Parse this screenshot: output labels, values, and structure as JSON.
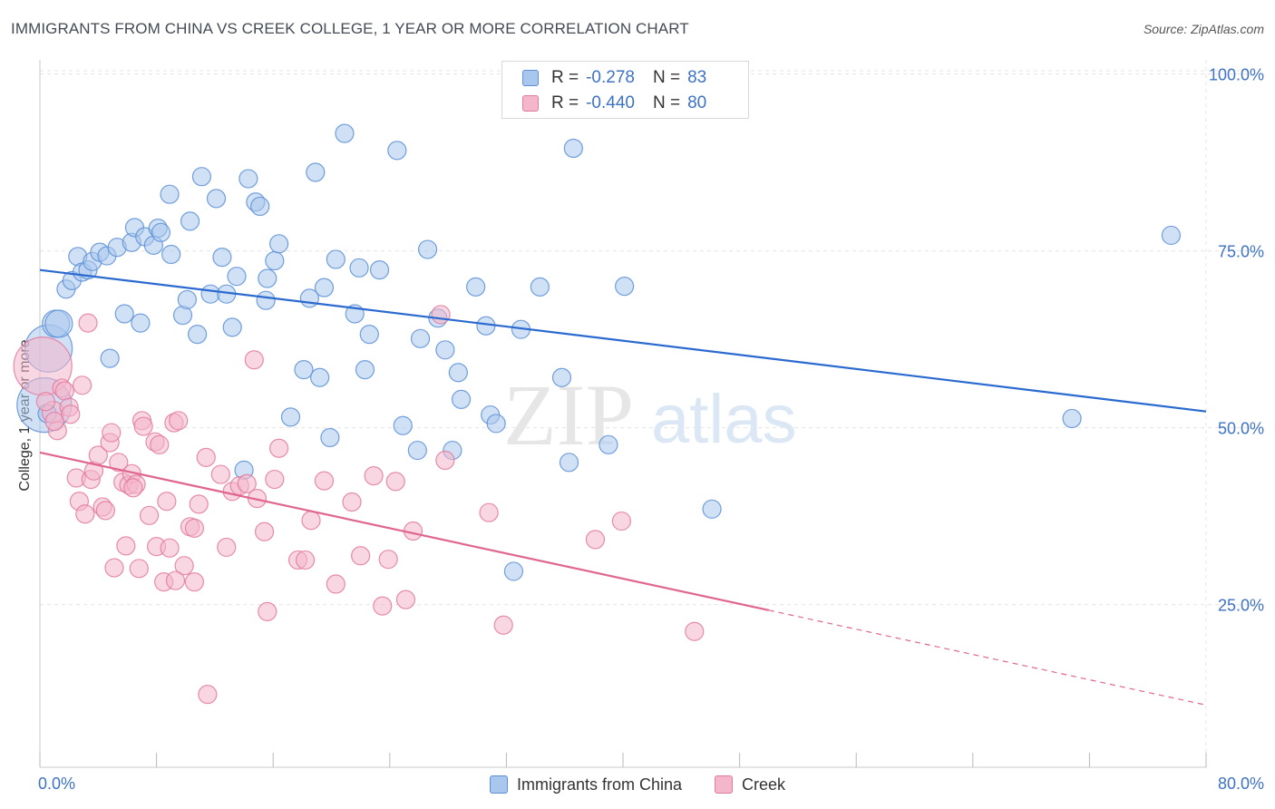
{
  "title": "IMMIGRANTS FROM CHINA VS CREEK COLLEGE, 1 YEAR OR MORE CORRELATION CHART",
  "source": "Source: ZipAtlas.com",
  "watermark": {
    "zip": "ZIP",
    "atlas": "atlas"
  },
  "colors": {
    "blue_fill": "#a9c6ec",
    "blue_stroke": "#5b8fd6",
    "blue_line": "#2a6ad0",
    "pink_fill": "#f4b6cb",
    "pink_stroke": "#e2799e",
    "pink_line": "#e0668f",
    "axis_text": "#3d72c4",
    "grid": "#e4e4e4"
  },
  "legend": {
    "r_label": "R =",
    "n_label": "N =",
    "series": [
      {
        "r": "-0.278",
        "n": "83"
      },
      {
        "r": "-0.440",
        "n": "80"
      }
    ]
  },
  "chart_data": {
    "type": "scatter",
    "title": "IMMIGRANTS FROM CHINA VS CREEK COLLEGE, 1 YEAR OR MORE CORRELATION CHART",
    "xlabel": "",
    "ylabel": "College, 1 year or more",
    "xlim": [
      0,
      80
    ],
    "ylim": [
      2,
      102
    ],
    "x_tick_labels": [
      "0.0%",
      "80.0%"
    ],
    "y_ticks": [
      25,
      50,
      75,
      100
    ],
    "y_tick_labels": [
      "25.0%",
      "50.0%",
      "75.0%",
      "100.0%"
    ],
    "legend_position": "top-center",
    "grid": true,
    "series": [
      {
        "name": "Immigrants from China",
        "trend": {
          "x": [
            0,
            80
          ],
          "y": [
            72.3,
            52.3
          ],
          "dashed_after": null
        },
        "points": [
          [
            0.3,
            53.2
          ],
          [
            0.6,
            61.2
          ],
          [
            1.1,
            64.7
          ],
          [
            1.3,
            64.7
          ],
          [
            1.8,
            69.6
          ],
          [
            2.2,
            70.8
          ],
          [
            2.6,
            74.2
          ],
          [
            2.9,
            72.0
          ],
          [
            3.3,
            72.3
          ],
          [
            3.6,
            73.5
          ],
          [
            4.1,
            74.8
          ],
          [
            4.6,
            74.3
          ],
          [
            4.8,
            59.8
          ],
          [
            5.3,
            75.5
          ],
          [
            5.8,
            66.1
          ],
          [
            6.3,
            76.2
          ],
          [
            6.5,
            78.3
          ],
          [
            6.9,
            64.8
          ],
          [
            7.2,
            77.0
          ],
          [
            7.8,
            75.8
          ],
          [
            8.1,
            78.2
          ],
          [
            8.3,
            77.6
          ],
          [
            8.9,
            83.0
          ],
          [
            9.0,
            74.5
          ],
          [
            9.8,
            65.9
          ],
          [
            10.1,
            68.1
          ],
          [
            10.3,
            79.2
          ],
          [
            10.8,
            63.2
          ],
          [
            11.1,
            85.5
          ],
          [
            11.7,
            68.9
          ],
          [
            12.1,
            82.4
          ],
          [
            12.5,
            74.1
          ],
          [
            12.8,
            68.9
          ],
          [
            13.2,
            64.2
          ],
          [
            13.5,
            71.4
          ],
          [
            14.0,
            44.0
          ],
          [
            14.3,
            85.2
          ],
          [
            14.8,
            81.9
          ],
          [
            15.1,
            81.3
          ],
          [
            15.5,
            68.0
          ],
          [
            15.6,
            71.1
          ],
          [
            16.1,
            73.6
          ],
          [
            16.4,
            76.0
          ],
          [
            17.2,
            51.5
          ],
          [
            18.1,
            58.2
          ],
          [
            18.5,
            68.3
          ],
          [
            18.9,
            86.1
          ],
          [
            19.2,
            57.1
          ],
          [
            19.5,
            69.8
          ],
          [
            19.9,
            48.6
          ],
          [
            20.3,
            73.8
          ],
          [
            20.9,
            91.6
          ],
          [
            21.6,
            66.1
          ],
          [
            21.9,
            72.6
          ],
          [
            22.3,
            58.2
          ],
          [
            22.6,
            63.2
          ],
          [
            23.3,
            72.3
          ],
          [
            24.5,
            89.2
          ],
          [
            24.9,
            50.3
          ],
          [
            25.9,
            46.8
          ],
          [
            26.1,
            62.6
          ],
          [
            26.6,
            75.2
          ],
          [
            27.3,
            65.5
          ],
          [
            27.8,
            61.0
          ],
          [
            28.3,
            46.8
          ],
          [
            28.7,
            57.8
          ],
          [
            28.9,
            54.0
          ],
          [
            29.9,
            69.9
          ],
          [
            30.6,
            64.4
          ],
          [
            30.9,
            51.8
          ],
          [
            31.3,
            50.6
          ],
          [
            32.5,
            29.7
          ],
          [
            33.0,
            63.9
          ],
          [
            34.3,
            69.9
          ],
          [
            35.8,
            57.1
          ],
          [
            36.3,
            45.1
          ],
          [
            36.6,
            89.5
          ],
          [
            39.0,
            47.6
          ],
          [
            40.1,
            70.0
          ],
          [
            46.1,
            38.5
          ],
          [
            70.8,
            51.3
          ],
          [
            77.6,
            77.2
          ],
          [
            0.5,
            52.0
          ]
        ],
        "sizes": [
          30,
          26,
          15,
          15,
          10,
          10,
          10,
          10,
          10,
          10,
          10,
          10,
          10,
          10,
          10,
          10,
          10,
          10,
          10,
          10,
          10,
          10,
          10,
          10,
          10,
          10,
          10,
          10,
          10,
          10,
          10,
          10,
          10,
          10,
          10,
          10,
          10,
          10,
          10,
          10,
          10,
          10,
          10,
          10,
          10,
          10,
          10,
          10,
          10,
          10,
          10,
          10,
          10,
          10,
          10,
          10,
          10,
          10,
          10,
          10,
          10,
          10,
          10,
          10,
          10,
          10,
          10,
          10,
          10,
          10,
          10,
          10,
          10,
          10,
          10,
          10,
          10,
          10,
          10,
          10,
          10,
          10,
          10
        ]
      },
      {
        "name": "Creek",
        "trend": {
          "x": [
            0,
            50,
            80
          ],
          "y": [
            46.5,
            24.2,
            10.8
          ],
          "dashed_after": 50
        },
        "points": [
          [
            0.2,
            58.7
          ],
          [
            0.9,
            52.2
          ],
          [
            1.2,
            49.6
          ],
          [
            1.5,
            55.6
          ],
          [
            1.7,
            55.2
          ],
          [
            2.0,
            52.9
          ],
          [
            2.1,
            51.9
          ],
          [
            2.5,
            42.9
          ],
          [
            2.7,
            39.6
          ],
          [
            2.9,
            56.0
          ],
          [
            3.1,
            37.8
          ],
          [
            3.3,
            64.8
          ],
          [
            3.5,
            42.7
          ],
          [
            3.7,
            43.9
          ],
          [
            4.0,
            46.1
          ],
          [
            4.3,
            38.8
          ],
          [
            4.5,
            38.3
          ],
          [
            4.8,
            47.9
          ],
          [
            4.9,
            49.3
          ],
          [
            5.1,
            30.2
          ],
          [
            5.4,
            45.1
          ],
          [
            5.7,
            42.3
          ],
          [
            5.9,
            33.3
          ],
          [
            6.1,
            41.9
          ],
          [
            6.3,
            43.5
          ],
          [
            6.6,
            42.0
          ],
          [
            6.8,
            30.1
          ],
          [
            7.0,
            51.0
          ],
          [
            7.1,
            50.2
          ],
          [
            7.5,
            37.6
          ],
          [
            7.9,
            48.0
          ],
          [
            8.0,
            33.2
          ],
          [
            8.2,
            47.6
          ],
          [
            8.5,
            28.2
          ],
          [
            8.7,
            39.6
          ],
          [
            8.9,
            33.0
          ],
          [
            9.2,
            50.7
          ],
          [
            9.5,
            51.0
          ],
          [
            9.9,
            30.5
          ],
          [
            10.3,
            36.0
          ],
          [
            10.6,
            35.8
          ],
          [
            10.6,
            28.2
          ],
          [
            10.9,
            39.2
          ],
          [
            11.4,
            45.8
          ],
          [
            11.5,
            12.3
          ],
          [
            12.4,
            43.4
          ],
          [
            12.8,
            33.1
          ],
          [
            13.2,
            41.0
          ],
          [
            13.7,
            41.8
          ],
          [
            14.2,
            42.1
          ],
          [
            14.7,
            59.6
          ],
          [
            14.9,
            40.0
          ],
          [
            15.4,
            35.3
          ],
          [
            15.6,
            24.0
          ],
          [
            16.1,
            42.7
          ],
          [
            16.4,
            47.1
          ],
          [
            17.7,
            31.3
          ],
          [
            18.2,
            31.3
          ],
          [
            18.6,
            36.9
          ],
          [
            19.5,
            42.5
          ],
          [
            20.3,
            27.9
          ],
          [
            21.4,
            39.5
          ],
          [
            22.0,
            31.9
          ],
          [
            22.9,
            43.2
          ],
          [
            23.5,
            24.8
          ],
          [
            23.9,
            31.4
          ],
          [
            24.4,
            42.4
          ],
          [
            25.1,
            25.7
          ],
          [
            25.6,
            35.4
          ],
          [
            27.5,
            66.0
          ],
          [
            27.8,
            45.4
          ],
          [
            30.8,
            38.0
          ],
          [
            31.8,
            22.1
          ],
          [
            38.1,
            34.2
          ],
          [
            39.9,
            36.8
          ],
          [
            44.9,
            21.2
          ],
          [
            0.4,
            53.7
          ],
          [
            1.0,
            50.9
          ],
          [
            6.4,
            41.5
          ],
          [
            9.3,
            28.4
          ]
        ],
        "sizes": [
          32,
          12,
          10,
          10,
          10,
          10,
          10,
          10,
          10,
          10,
          10,
          10,
          10,
          10,
          10,
          10,
          10,
          10,
          10,
          10,
          10,
          10,
          10,
          10,
          10,
          10,
          10,
          10,
          10,
          10,
          10,
          10,
          10,
          10,
          10,
          10,
          10,
          10,
          10,
          10,
          10,
          10,
          10,
          10,
          10,
          10,
          10,
          10,
          10,
          10,
          10,
          10,
          10,
          10,
          10,
          10,
          10,
          10,
          10,
          10,
          10,
          10,
          10,
          10,
          10,
          10,
          10,
          10,
          10,
          10,
          10,
          10,
          10,
          10,
          10,
          10,
          10,
          10,
          10,
          10
        ]
      }
    ]
  }
}
